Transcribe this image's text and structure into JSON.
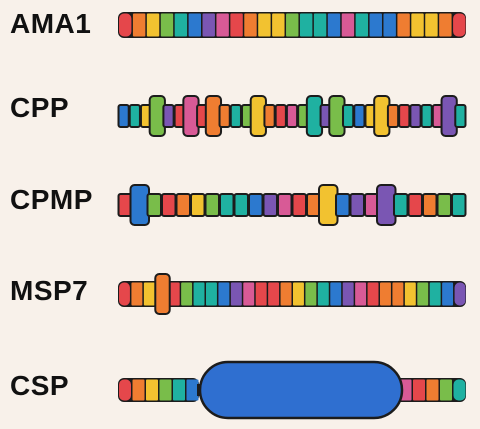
{
  "colors": {
    "red": "#e5474b",
    "orange": "#ef7d31",
    "yellow": "#f2c230",
    "green": "#79bd4a",
    "teal": "#1fb1a1",
    "blue": "#2c79cf",
    "purple": "#7a56b3",
    "magenta": "#d85a96",
    "outline": "#1c1c1c",
    "csp_domain": "#2f6fd0"
  },
  "proteins": [
    {
      "id": "ama1",
      "label": "AMA1",
      "segments": [
        {
          "color": "red"
        },
        {
          "color": "orange"
        },
        {
          "color": "yellow"
        },
        {
          "color": "green"
        },
        {
          "color": "teal"
        },
        {
          "color": "blue"
        },
        {
          "color": "purple"
        },
        {
          "color": "magenta"
        },
        {
          "color": "red"
        },
        {
          "color": "orange"
        },
        {
          "color": "yellow"
        },
        {
          "color": "yellow"
        },
        {
          "color": "green"
        },
        {
          "color": "teal"
        },
        {
          "color": "teal"
        },
        {
          "color": "blue"
        },
        {
          "color": "magenta"
        },
        {
          "color": "teal"
        },
        {
          "color": "blue"
        },
        {
          "color": "blue"
        },
        {
          "color": "orange"
        },
        {
          "color": "yellow"
        },
        {
          "color": "yellow"
        },
        {
          "color": "orange"
        },
        {
          "color": "red"
        }
      ]
    },
    {
      "id": "cpp",
      "label": "CPP",
      "segments": [
        {
          "color": "blue"
        },
        {
          "color": "teal"
        },
        {
          "color": "yellow"
        },
        {
          "color": "green",
          "big": true
        },
        {
          "color": "purple"
        },
        {
          "color": "red"
        },
        {
          "color": "magenta",
          "big": true
        },
        {
          "color": "red"
        },
        {
          "color": "orange",
          "big": true
        },
        {
          "color": "orange"
        },
        {
          "color": "teal"
        },
        {
          "color": "green"
        },
        {
          "color": "yellow",
          "big": true
        },
        {
          "color": "orange"
        },
        {
          "color": "red"
        },
        {
          "color": "magenta"
        },
        {
          "color": "green"
        },
        {
          "color": "teal",
          "big": true
        },
        {
          "color": "purple"
        },
        {
          "color": "green",
          "big": true
        },
        {
          "color": "teal"
        },
        {
          "color": "blue"
        },
        {
          "color": "yellow"
        },
        {
          "color": "yellow",
          "big": true
        },
        {
          "color": "orange"
        },
        {
          "color": "red"
        },
        {
          "color": "purple"
        },
        {
          "color": "teal"
        },
        {
          "color": "magenta"
        },
        {
          "color": "purple",
          "big": true
        },
        {
          "color": "teal"
        }
      ]
    },
    {
      "id": "cpmp",
      "label": "CPMP",
      "segments": [
        {
          "color": "red"
        },
        {
          "color": "blue",
          "big": true
        },
        {
          "color": "green"
        },
        {
          "color": "red"
        },
        {
          "color": "orange"
        },
        {
          "color": "yellow"
        },
        {
          "color": "green"
        },
        {
          "color": "teal"
        },
        {
          "color": "teal"
        },
        {
          "color": "blue"
        },
        {
          "color": "purple"
        },
        {
          "color": "magenta"
        },
        {
          "color": "red"
        },
        {
          "color": "orange"
        },
        {
          "color": "yellow",
          "big": true
        },
        {
          "color": "blue"
        },
        {
          "color": "purple"
        },
        {
          "color": "magenta"
        },
        {
          "color": "purple",
          "big": true
        },
        {
          "color": "teal"
        },
        {
          "color": "red"
        },
        {
          "color": "orange"
        },
        {
          "color": "green"
        },
        {
          "color": "teal"
        }
      ]
    },
    {
      "id": "msp7",
      "label": "MSP7",
      "segments": [
        {
          "color": "red"
        },
        {
          "color": "orange"
        },
        {
          "color": "yellow"
        },
        {
          "color": "orange",
          "big": true
        },
        {
          "color": "red"
        },
        {
          "color": "green"
        },
        {
          "color": "teal"
        },
        {
          "color": "teal"
        },
        {
          "color": "blue"
        },
        {
          "color": "purple"
        },
        {
          "color": "magenta"
        },
        {
          "color": "red"
        },
        {
          "color": "red"
        },
        {
          "color": "orange"
        },
        {
          "color": "yellow"
        },
        {
          "color": "green"
        },
        {
          "color": "teal"
        },
        {
          "color": "blue"
        },
        {
          "color": "purple"
        },
        {
          "color": "magenta"
        },
        {
          "color": "red"
        },
        {
          "color": "orange"
        },
        {
          "color": "orange"
        },
        {
          "color": "yellow"
        },
        {
          "color": "green"
        },
        {
          "color": "teal"
        },
        {
          "color": "blue"
        },
        {
          "color": "purple"
        }
      ]
    },
    {
      "id": "csp",
      "label": "CSP",
      "segments": [
        {
          "color": "red"
        },
        {
          "color": "orange"
        },
        {
          "color": "yellow"
        },
        {
          "color": "green"
        },
        {
          "color": "teal"
        },
        {
          "color": "blue"
        },
        {
          "color": "csp_domain",
          "domain": true
        },
        {
          "color": "teal"
        },
        {
          "color": "purple"
        },
        {
          "color": "magenta"
        },
        {
          "color": "red"
        },
        {
          "color": "orange"
        },
        {
          "color": "green"
        },
        {
          "color": "teal"
        }
      ]
    }
  ]
}
